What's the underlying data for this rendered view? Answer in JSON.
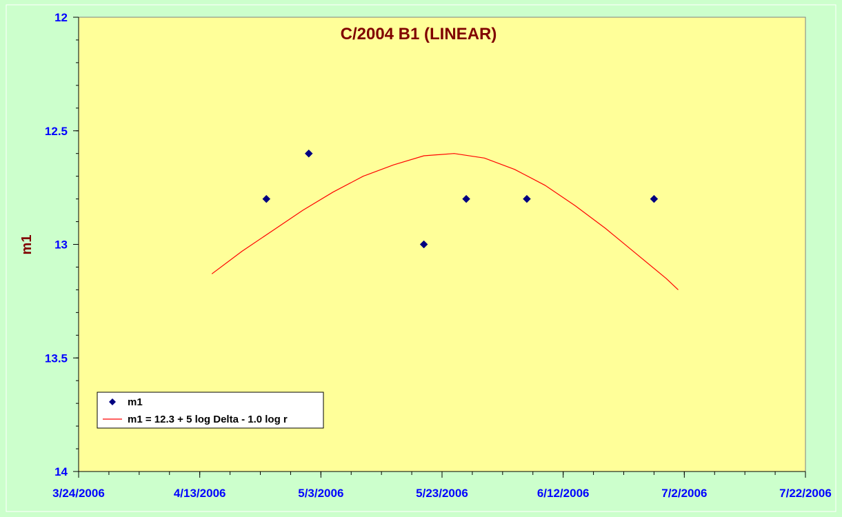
{
  "chart_data": {
    "type": "scatter",
    "title": "C/2004 B1 (LINEAR)",
    "xlabel": "",
    "ylabel": "m1",
    "x_axis_type": "date",
    "xlim": [
      "2006-03-24",
      "2006-07-22"
    ],
    "ylim": [
      12,
      14
    ],
    "y_inverted": true,
    "y_ticks": [
      12,
      12.5,
      13,
      13.5,
      14
    ],
    "x_ticks": [
      "2006-03-24",
      "2006-04-13",
      "2006-05-03",
      "2006-05-23",
      "2006-06-12",
      "2006-07-02",
      "2006-07-22"
    ],
    "x_tick_labels": [
      "3/24/2006",
      "4/13/2006",
      "5/3/2006",
      "5/23/2006",
      "6/12/2006",
      "7/2/2006",
      "7/22/2006"
    ],
    "y_tick_labels": [
      "12",
      "12.5",
      "13",
      "13.5",
      "14"
    ],
    "minor_x_tick_days": 5,
    "minor_y_tick_step": 0.1,
    "grid": false,
    "legend_position": "bottom-left",
    "series": [
      {
        "name": "m1",
        "kind": "scatter",
        "color": "#000080",
        "marker": "diamond",
        "x": [
          "2006-04-24",
          "2006-05-01",
          "2006-05-20",
          "2006-05-27",
          "2006-06-06",
          "2006-06-27"
        ],
        "y": [
          12.8,
          12.6,
          13.0,
          12.8,
          12.8,
          12.8
        ]
      },
      {
        "name": "m1 = 12.3 + 5 log Delta - 1.0 log r",
        "kind": "line",
        "color": "#ff0000",
        "x": [
          "2006-04-15",
          "2006-04-20",
          "2006-04-25",
          "2006-04-30",
          "2006-05-05",
          "2006-05-10",
          "2006-05-15",
          "2006-05-20",
          "2006-05-25",
          "2006-05-30",
          "2006-06-04",
          "2006-06-09",
          "2006-06-14",
          "2006-06-19",
          "2006-06-24",
          "2006-06-29",
          "2006-07-01"
        ],
        "y": [
          13.13,
          13.03,
          12.94,
          12.85,
          12.77,
          12.7,
          12.65,
          12.61,
          12.6,
          12.62,
          12.67,
          12.74,
          12.83,
          12.93,
          13.04,
          13.15,
          13.2
        ]
      }
    ]
  },
  "colors": {
    "page_background": "#ccffcc",
    "plot_background": "#ffff99",
    "axis": "#000000",
    "tick_labels": "#0000ff",
    "titles": "#800000"
  }
}
